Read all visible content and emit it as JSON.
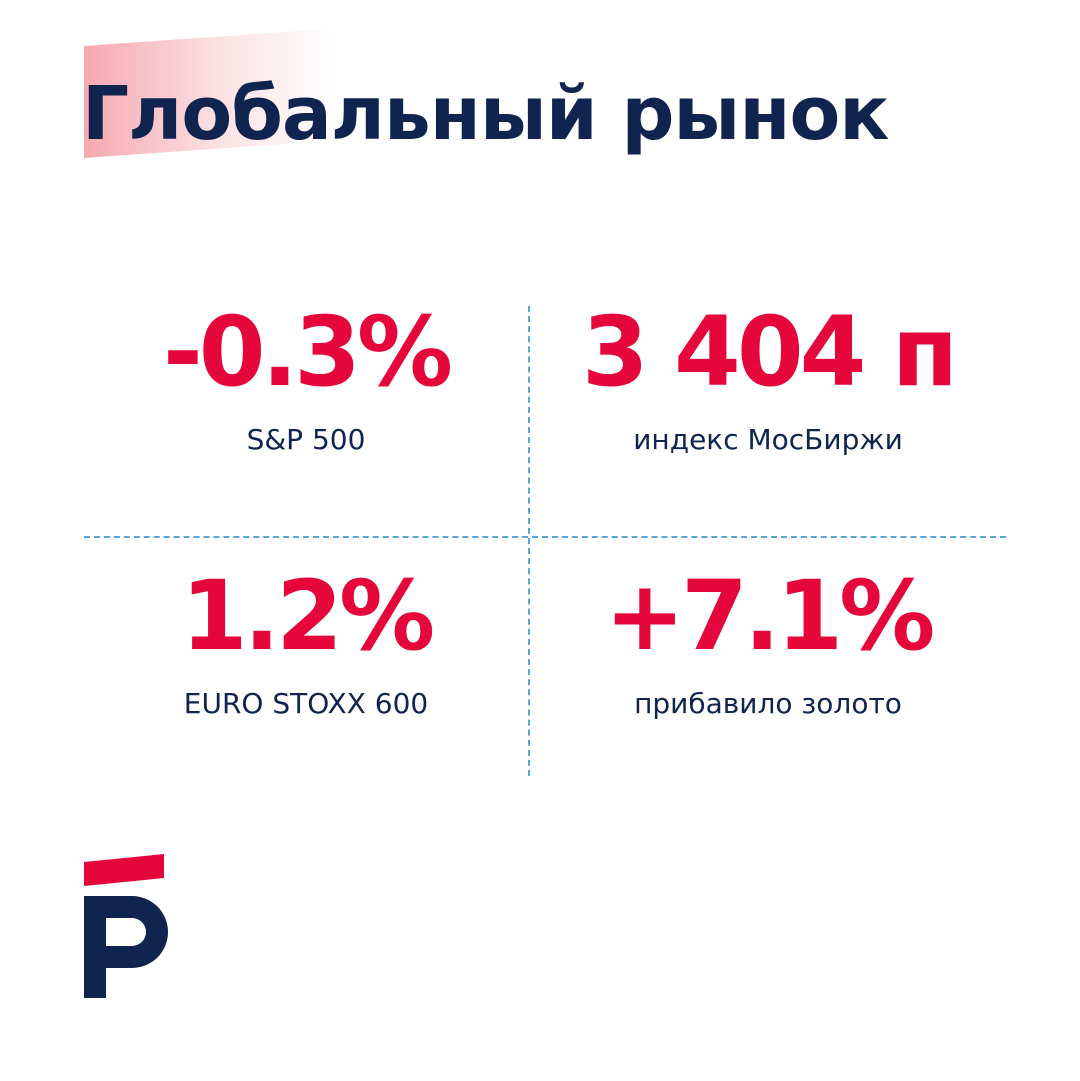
{
  "header": {
    "title": "Глобальный рынок"
  },
  "metrics": [
    {
      "value": "-0.3%",
      "label": "S&P 500"
    },
    {
      "value": "3 404 п",
      "label": "индекс МосБиржи"
    },
    {
      "value": "1.2%",
      "label": "EURO STOXX 600"
    },
    {
      "value": "+7.1%",
      "label": "прибавило золото"
    }
  ],
  "colors": {
    "brand_navy": "#0f2550",
    "accent_red": "#e5063c",
    "divider_blue": "#56a5d3",
    "highlight_pink": "#f28c96"
  },
  "logo": {
    "icon": "brand-logo-icon"
  }
}
